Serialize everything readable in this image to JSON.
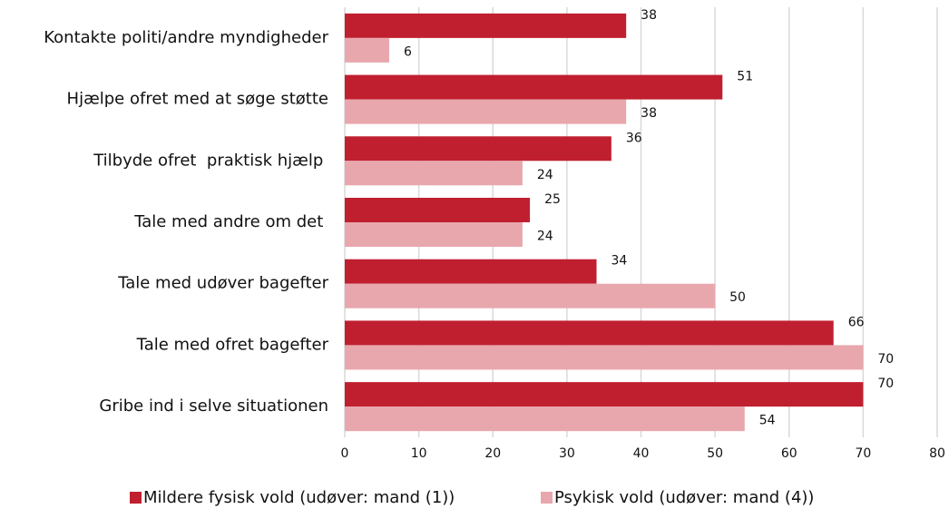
{
  "chart_data": {
    "type": "bar",
    "orientation": "horizontal",
    "categories": [
      "Kontakte politi/andre myndigheder",
      "Hjælpe ofret med at søge støtte",
      "Tilbyde ofret  praktisk hjælp ",
      "Tale med andre om det ",
      "Tale med udøver bagefter",
      "Tale med ofret bagefter",
      "Gribe ind i selve situationen"
    ],
    "series": [
      {
        "name": "Mildere fysisk vold (udøver: mand (1))",
        "color": "#c01f30",
        "values": [
          38,
          51,
          36,
          25,
          34,
          66,
          70
        ]
      },
      {
        "name": "Psykisk vold (udøver: mand (4))",
        "color": "#e8a7ad",
        "values": [
          6,
          38,
          24,
          24,
          50,
          70,
          54
        ]
      }
    ],
    "xlim": [
      0,
      80
    ],
    "xticks": [
      0,
      10,
      20,
      30,
      40,
      50,
      60,
      70,
      80
    ],
    "grid": true,
    "legend": "bottom"
  }
}
